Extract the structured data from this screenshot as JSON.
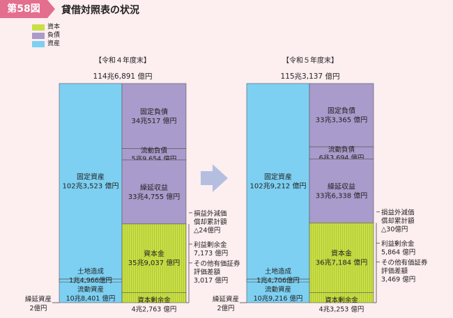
{
  "header": {
    "figure_label": "第58図",
    "title": "貸借対照表の状況"
  },
  "legend": [
    {
      "label": "資本",
      "color": "#c9df45"
    },
    {
      "label": "負債",
      "color": "#a99bcb"
    },
    {
      "label": "資産",
      "color": "#7dd0f2"
    }
  ],
  "chart_data": {
    "type": "bar",
    "unit": "億円",
    "colors": {
      "asset": "#7dd0f2",
      "liability": "#a99bcb",
      "equity": "#c9df45",
      "arrow": "#b4bfe0",
      "tick": "#444444"
    },
    "series": [
      {
        "name": "【令和４年度末】",
        "total_label": "114兆6,891 億円",
        "total": 1146891,
        "assets": [
          {
            "name": "固定資産",
            "value_label": "102兆3,523 億円",
            "value": 1023523
          },
          {
            "name": "土地造成",
            "value_label": "1兆4,966億円",
            "value": 14966
          },
          {
            "name": "流動資産",
            "value_label": "10兆8,401 億円",
            "value": 108401
          },
          {
            "name": "繰延資産",
            "value_label": "2億円",
            "value": 2
          }
        ],
        "liabilities": [
          {
            "name": "固定負債",
            "value_label": "34兆517 億円",
            "value": 340517
          },
          {
            "name": "流動負債",
            "value_label": "5兆9,654 億円",
            "value": 59654
          },
          {
            "name": "繰延収益",
            "value_label": "33兆4,755 億円",
            "value": 334755
          }
        ],
        "equity": [
          {
            "name": "資本金",
            "value_label": "35兆9,037 億円",
            "value": 359037
          },
          {
            "name": "資本剰余金",
            "value_label": "4兆2,763 億円",
            "value": 42763
          }
        ],
        "notes": [
          {
            "lines": [
              "損益外減価",
              "償却累計額",
              "△24億円"
            ],
            "value": -24
          },
          {
            "lines": [
              "利益剰余金",
              "7,173 億円"
            ],
            "value": 7173
          },
          {
            "lines": [
              "その他有価証券",
              "評価差額",
              "3,017 億円"
            ],
            "value": 3017
          }
        ]
      },
      {
        "name": "【令和５年度末】",
        "total_label": "115兆3,137 億円",
        "total": 1153137,
        "assets": [
          {
            "name": "固定資産",
            "value_label": "102兆9,212 億円",
            "value": 1029212
          },
          {
            "name": "土地造成",
            "value_label": "1兆4,706億円",
            "value": 14706
          },
          {
            "name": "流動資産",
            "value_label": "10兆9,216 億円",
            "value": 109216
          },
          {
            "name": "繰延資産",
            "value_label": "2億円",
            "value": 2
          }
        ],
        "liabilities": [
          {
            "name": "固定負債",
            "value_label": "33兆3,365 億円",
            "value": 333365
          },
          {
            "name": "流動負債",
            "value_label": "6兆3,694 億円",
            "value": 63694
          },
          {
            "name": "繰延収益",
            "value_label": "33兆6,338 億円",
            "value": 336338
          }
        ],
        "equity": [
          {
            "name": "資本金",
            "value_label": "36兆7,184 億円",
            "value": 367184
          },
          {
            "name": "資本剰余金",
            "value_label": "4兆3,253 億円",
            "value": 43253
          }
        ],
        "notes": [
          {
            "lines": [
              "損益外減価",
              "償却累計額",
              "△30億円"
            ],
            "value": -30
          },
          {
            "lines": [
              "利益剰余金",
              "5,864 億円"
            ],
            "value": 5864
          },
          {
            "lines": [
              "その他有価証券",
              "評価差額",
              "3,469 億円"
            ],
            "value": 3469
          }
        ]
      }
    ]
  }
}
